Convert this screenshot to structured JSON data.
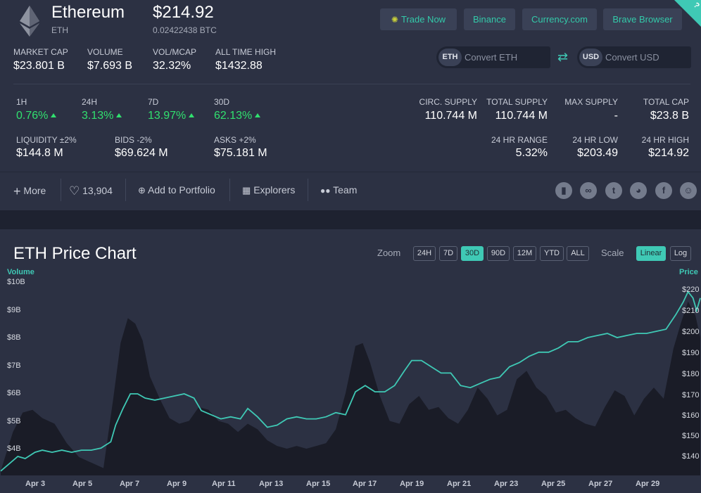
{
  "coin": {
    "name": "Ethereum",
    "symbol": "ETH",
    "price": "$214.92",
    "price_btc": "0.02422438 BTC",
    "logo_icon": "ethereum-diamond-icon"
  },
  "top_buttons": [
    "Trade Now",
    "Binance",
    "Currency.com",
    "Brave Browser"
  ],
  "corner_badge": "?",
  "stats_top": [
    {
      "label": "MARKET CAP",
      "value": "$23.801 B"
    },
    {
      "label": "VOLUME",
      "value": "$7.693 B"
    },
    {
      "label": "VOL/MCAP",
      "value": "32.32%"
    },
    {
      "label": "ALL TIME HIGH",
      "value": "$1432.88"
    }
  ],
  "converter": {
    "left_currency": "ETH",
    "left_placeholder": "Convert ETH",
    "right_currency": "USD",
    "right_placeholder": "Convert USD",
    "swap_icon": "swap-arrows-icon"
  },
  "changes": [
    {
      "label": "1H",
      "value": "0.76%"
    },
    {
      "label": "24H",
      "value": "3.13%"
    },
    {
      "label": "7D",
      "value": "13.97%"
    },
    {
      "label": "30D",
      "value": "62.13%"
    }
  ],
  "liquidity": [
    {
      "label": "LIQUIDITY ±2%",
      "value": "$144.8 M"
    },
    {
      "label": "BIDS -2%",
      "value": "$69.624 M"
    },
    {
      "label": "ASKS +2%",
      "value": "$75.181 M"
    }
  ],
  "supply": [
    {
      "label": "CIRC. SUPPLY",
      "value": "110.744 M"
    },
    {
      "label": "TOTAL SUPPLY",
      "value": "110.744 M"
    },
    {
      "label": "MAX SUPPLY",
      "value": "-"
    },
    {
      "label": "TOTAL CAP",
      "value": "$23.8 B"
    }
  ],
  "range": [
    {
      "label": "24 HR RANGE",
      "value": "5.32%"
    },
    {
      "label": "24 HR LOW",
      "value": "$203.49"
    },
    {
      "label": "24 HR HIGH",
      "value": "$214.92"
    }
  ],
  "toolbar": {
    "more": "More",
    "likes": "13,904",
    "add_portfolio": "Add to Portfolio",
    "explorers": "Explorers",
    "team": "Team"
  },
  "social_icons": [
    "document-icon",
    "link-icon",
    "twitter-icon",
    "reddit-icon",
    "facebook-icon",
    "discord-icon"
  ],
  "chart_panel": {
    "title": "ETH Price Chart",
    "zoom_label": "Zoom",
    "zoom_options": [
      "24H",
      "7D",
      "30D",
      "90D",
      "12M",
      "YTD",
      "ALL"
    ],
    "zoom_selected": "30D",
    "scale_label": "Scale",
    "scale_options": [
      "Linear",
      "Log"
    ],
    "scale_selected": "Linear"
  },
  "colors": {
    "accent": "#3fc9b5",
    "positive": "#31e06f",
    "panel": "#2c3143",
    "background": "#1e2230",
    "volume_fill": "#1a1c27"
  },
  "chart_data": {
    "type": "line",
    "xlabel": "",
    "ylabel_left": "Volume",
    "ylabel_right": "Price",
    "x_ticks": [
      "Apr 3",
      "Apr 5",
      "Apr 7",
      "Apr 9",
      "Apr 11",
      "Apr 13",
      "Apr 15",
      "Apr 17",
      "Apr 19",
      "Apr 21",
      "Apr 23",
      "Apr 25",
      "Apr 27",
      "Apr 29"
    ],
    "y_left_ticks": [
      "$10B",
      "$9B",
      "$8B",
      "$7B",
      "$6B",
      "$5B",
      "$4B"
    ],
    "y_right_ticks": [
      "$220",
      "$210",
      "$200",
      "$190",
      "$180",
      "$170",
      "$160",
      "$150",
      "$140"
    ],
    "price_ylim": [
      130,
      226
    ],
    "volume_ylim": [
      3000000000,
      10500000000
    ],
    "x_range": [
      2.3,
      30.9
    ],
    "series": [
      {
        "name": "Price",
        "points": [
          [
            2.3,
            133
          ],
          [
            2.6,
            136
          ],
          [
            3.0,
            140
          ],
          [
            3.3,
            139
          ],
          [
            3.7,
            142
          ],
          [
            4.0,
            143
          ],
          [
            4.4,
            142
          ],
          [
            4.8,
            143
          ],
          [
            5.2,
            142
          ],
          [
            5.6,
            143
          ],
          [
            6.0,
            143
          ],
          [
            6.4,
            144
          ],
          [
            6.8,
            147
          ],
          [
            7.0,
            155
          ],
          [
            7.3,
            163
          ],
          [
            7.6,
            170
          ],
          [
            7.9,
            170
          ],
          [
            8.2,
            168
          ],
          [
            8.6,
            167
          ],
          [
            9.0,
            168
          ],
          [
            9.4,
            169
          ],
          [
            9.8,
            170
          ],
          [
            10.2,
            168
          ],
          [
            10.5,
            162
          ],
          [
            10.9,
            160
          ],
          [
            11.3,
            158
          ],
          [
            11.7,
            159
          ],
          [
            12.1,
            158
          ],
          [
            12.4,
            163
          ],
          [
            12.8,
            159
          ],
          [
            13.2,
            154
          ],
          [
            13.6,
            155
          ],
          [
            14.0,
            158
          ],
          [
            14.4,
            159
          ],
          [
            14.8,
            158
          ],
          [
            15.2,
            158
          ],
          [
            15.6,
            159
          ],
          [
            16.0,
            161
          ],
          [
            16.4,
            160
          ],
          [
            16.8,
            171
          ],
          [
            17.2,
            174
          ],
          [
            17.6,
            171
          ],
          [
            18.0,
            171
          ],
          [
            18.4,
            174
          ],
          [
            18.8,
            181
          ],
          [
            19.1,
            186
          ],
          [
            19.5,
            186
          ],
          [
            19.9,
            183
          ],
          [
            20.3,
            180
          ],
          [
            20.7,
            180
          ],
          [
            21.1,
            174
          ],
          [
            21.5,
            173
          ],
          [
            21.9,
            175
          ],
          [
            22.3,
            177
          ],
          [
            22.7,
            178
          ],
          [
            23.1,
            183
          ],
          [
            23.5,
            185
          ],
          [
            23.9,
            188
          ],
          [
            24.3,
            190
          ],
          [
            24.7,
            190
          ],
          [
            25.1,
            192
          ],
          [
            25.5,
            195
          ],
          [
            25.9,
            195
          ],
          [
            26.3,
            197
          ],
          [
            26.7,
            198
          ],
          [
            27.1,
            199
          ],
          [
            27.5,
            197
          ],
          [
            27.9,
            198
          ],
          [
            28.3,
            199
          ],
          [
            28.7,
            199
          ],
          [
            29.1,
            200
          ],
          [
            29.5,
            201
          ],
          [
            29.9,
            208
          ],
          [
            30.2,
            214
          ],
          [
            30.4,
            219
          ],
          [
            30.6,
            216
          ],
          [
            30.75,
            210
          ],
          [
            30.9,
            216
          ]
        ]
      },
      {
        "name": "Volume",
        "points": [
          [
            2.3,
            3.2
          ],
          [
            2.8,
            4.6
          ],
          [
            3.2,
            5.3
          ],
          [
            3.6,
            5.4
          ],
          [
            4.0,
            5.1
          ],
          [
            4.5,
            4.9
          ],
          [
            5.0,
            4.2
          ],
          [
            5.5,
            3.7
          ],
          [
            6.0,
            3.5
          ],
          [
            6.5,
            3.3
          ],
          [
            6.9,
            5.8
          ],
          [
            7.2,
            7.8
          ],
          [
            7.5,
            8.7
          ],
          [
            7.8,
            8.5
          ],
          [
            8.1,
            7.9
          ],
          [
            8.4,
            6.6
          ],
          [
            8.8,
            5.8
          ],
          [
            9.2,
            5.1
          ],
          [
            9.6,
            4.9
          ],
          [
            10.0,
            5.0
          ],
          [
            10.4,
            5.5
          ],
          [
            10.8,
            5.4
          ],
          [
            11.2,
            5.0
          ],
          [
            11.6,
            4.9
          ],
          [
            12.0,
            4.6
          ],
          [
            12.4,
            4.9
          ],
          [
            12.8,
            4.7
          ],
          [
            13.2,
            4.3
          ],
          [
            13.6,
            4.1
          ],
          [
            14.0,
            4.0
          ],
          [
            14.4,
            4.1
          ],
          [
            14.8,
            4.0
          ],
          [
            15.2,
            4.1
          ],
          [
            15.6,
            4.2
          ],
          [
            16.0,
            4.7
          ],
          [
            16.4,
            6.0
          ],
          [
            16.8,
            7.7
          ],
          [
            17.1,
            7.8
          ],
          [
            17.4,
            7.1
          ],
          [
            17.8,
            5.9
          ],
          [
            18.2,
            5.0
          ],
          [
            18.6,
            4.9
          ],
          [
            19.0,
            5.6
          ],
          [
            19.4,
            5.9
          ],
          [
            19.8,
            5.4
          ],
          [
            20.2,
            5.5
          ],
          [
            20.6,
            5.1
          ],
          [
            21.0,
            4.9
          ],
          [
            21.4,
            5.4
          ],
          [
            21.8,
            6.2
          ],
          [
            22.2,
            5.8
          ],
          [
            22.6,
            5.2
          ],
          [
            23.0,
            5.4
          ],
          [
            23.4,
            6.5
          ],
          [
            23.8,
            6.8
          ],
          [
            24.2,
            6.2
          ],
          [
            24.6,
            5.9
          ],
          [
            25.0,
            5.3
          ],
          [
            25.4,
            5.4
          ],
          [
            25.8,
            5.1
          ],
          [
            26.2,
            4.9
          ],
          [
            26.6,
            4.8
          ],
          [
            27.0,
            5.5
          ],
          [
            27.4,
            6.1
          ],
          [
            27.8,
            5.9
          ],
          [
            28.2,
            5.2
          ],
          [
            28.6,
            5.8
          ],
          [
            29.0,
            6.2
          ],
          [
            29.4,
            5.8
          ],
          [
            29.8,
            7.6
          ],
          [
            30.1,
            8.5
          ],
          [
            30.4,
            9.3
          ],
          [
            30.7,
            8.8
          ],
          [
            30.9,
            8.0
          ]
        ]
      }
    ],
    "grid": false,
    "legend": "none"
  }
}
